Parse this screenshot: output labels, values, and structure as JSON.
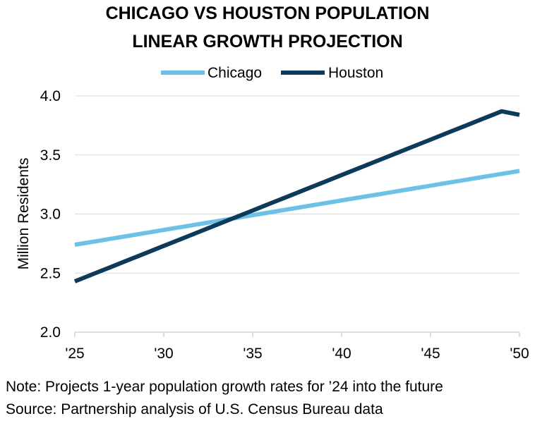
{
  "chart_data": {
    "type": "line",
    "title": [
      "CHICAGO VS HOUSTON POPULATION",
      "LINEAR GROWTH PROJECTION"
    ],
    "xlabel": "",
    "ylabel": "Million Residents",
    "x": [
      2025,
      2026,
      2027,
      2028,
      2029,
      2030,
      2031,
      2032,
      2033,
      2034,
      2035,
      2036,
      2037,
      2038,
      2039,
      2040,
      2041,
      2042,
      2043,
      2044,
      2045,
      2046,
      2047,
      2048,
      2049,
      2050
    ],
    "x_ticks": [
      2025,
      2030,
      2035,
      2040,
      2045,
      2050
    ],
    "x_tick_labels": [
      "'25",
      "'30",
      "'35",
      "'40",
      "'45",
      "'50"
    ],
    "xlim": [
      2025,
      2050
    ],
    "ylim": [
      2.0,
      4.0
    ],
    "y_ticks": [
      2.0,
      2.5,
      3.0,
      3.5,
      4.0
    ],
    "y_tick_labels": [
      "2.0",
      "2.5",
      "3.0",
      "3.5",
      "4.0"
    ],
    "grid": true,
    "legend_position": "top",
    "series": [
      {
        "name": "Chicago",
        "color": "#6ec0e6",
        "values": [
          2.74,
          2.765,
          2.79,
          2.815,
          2.84,
          2.865,
          2.89,
          2.915,
          2.94,
          2.965,
          2.99,
          3.015,
          3.04,
          3.065,
          3.09,
          3.115,
          3.14,
          3.165,
          3.19,
          3.215,
          3.24,
          3.265,
          3.29,
          3.315,
          3.34,
          3.365
        ]
      },
      {
        "name": "Houston",
        "color": "#0b3a5a",
        "values": [
          2.43,
          2.49,
          2.55,
          2.61,
          2.67,
          2.73,
          2.79,
          2.85,
          2.91,
          2.97,
          3.03,
          3.09,
          3.15,
          3.21,
          3.27,
          3.33,
          3.39,
          3.45,
          3.51,
          3.57,
          3.63,
          3.69,
          3.75,
          3.81,
          3.87,
          3.84
        ]
      }
    ],
    "notes": [
      "Note: Projects 1-year population growth rates for ’24 into the future",
      "Source: Partnership analysis of U.S. Census Bureau data"
    ]
  }
}
